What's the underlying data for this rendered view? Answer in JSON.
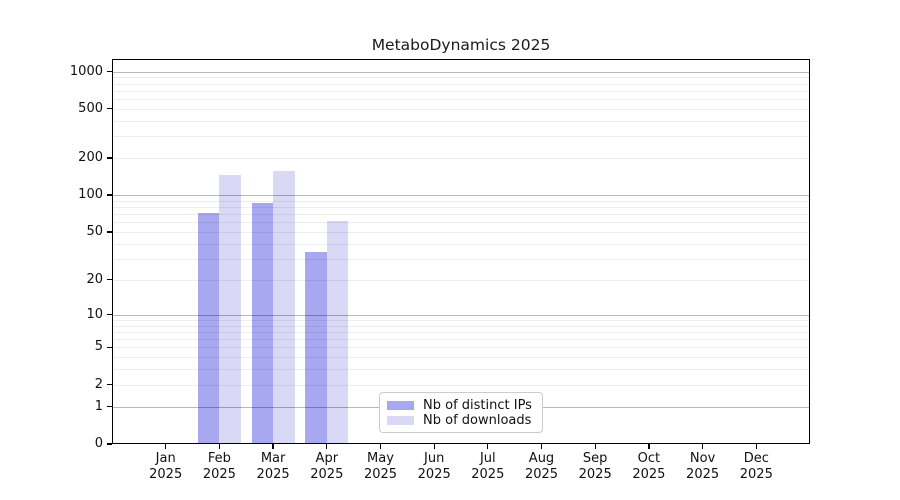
{
  "chart_data": {
    "type": "bar",
    "title": "MetaboDynamics 2025",
    "categories": [
      "Jan",
      "Feb",
      "Mar",
      "Apr",
      "May",
      "Jun",
      "Jul",
      "Aug",
      "Sep",
      "Oct",
      "Nov",
      "Dec"
    ],
    "category_year": "2025",
    "series": [
      {
        "name": "Nb of distinct IPs",
        "color": "#a8a8f0",
        "values": [
          0,
          72,
          87,
          34,
          0,
          0,
          0,
          0,
          0,
          0,
          0,
          0
        ]
      },
      {
        "name": "Nb of downloads",
        "color": "#d9d9f5",
        "values": [
          0,
          145,
          156,
          62,
          0,
          0,
          0,
          0,
          0,
          0,
          0,
          0
        ]
      }
    ],
    "y_axis": {
      "scale": "log1p",
      "ticks": [
        0,
        1,
        2,
        5,
        10,
        20,
        50,
        100,
        200,
        500,
        1000
      ],
      "major_gridlines": [
        1,
        10,
        100,
        1000
      ],
      "max": 1260,
      "grid": true
    },
    "x_axis": {
      "slots": 13
    },
    "legend": {
      "position": "inside-bottom-center",
      "entries": [
        "Nb of distinct IPs",
        "Nb of downloads"
      ]
    }
  }
}
